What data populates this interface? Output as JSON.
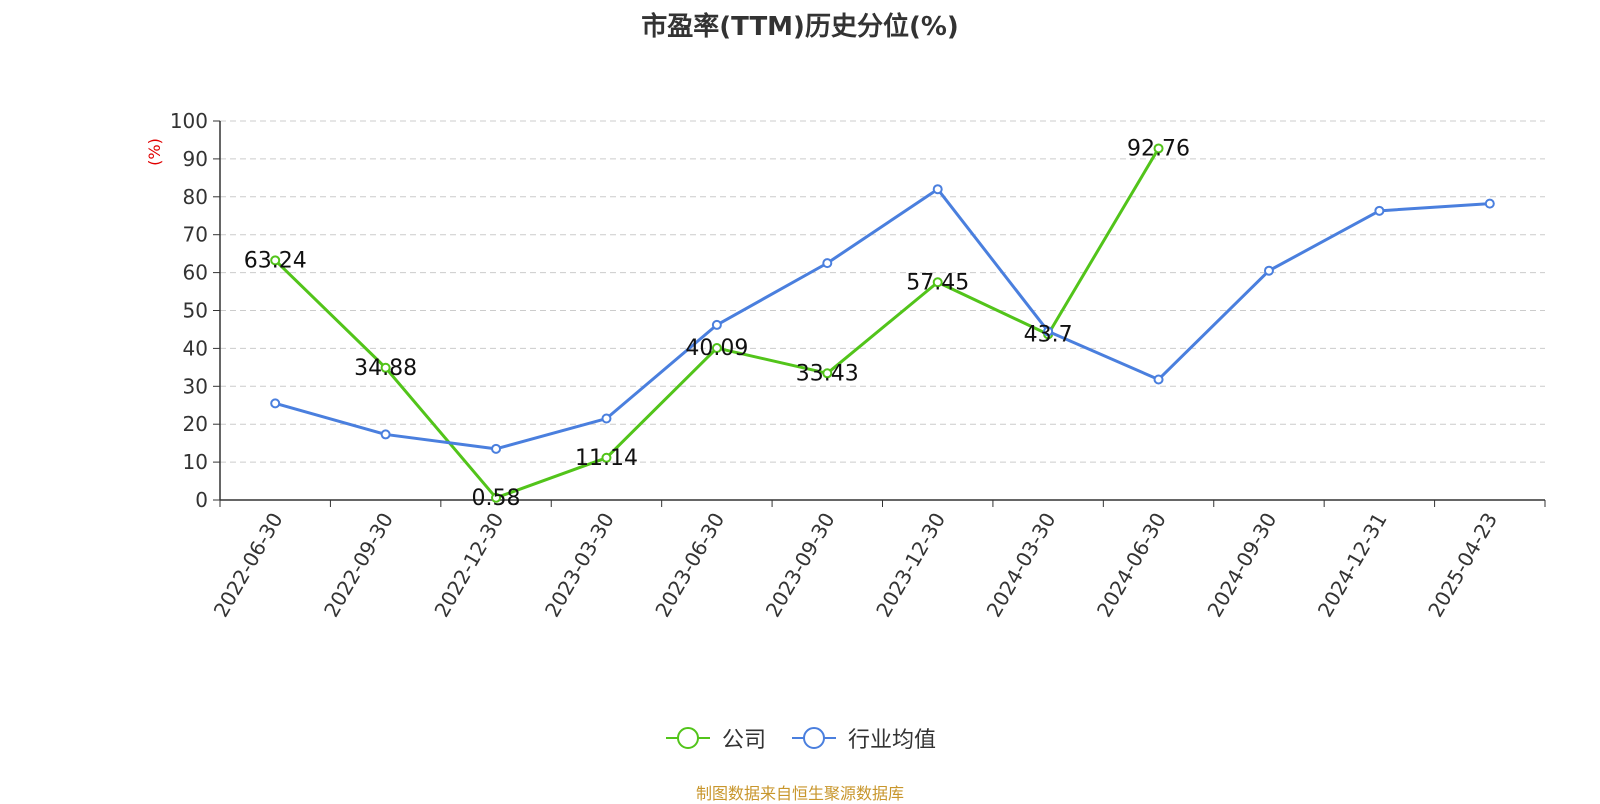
{
  "chart_data": {
    "type": "line",
    "title": "市盈率(TTM)历史分位(%)",
    "ylabel": "(%)",
    "ylim": [
      0,
      100
    ],
    "yticks": [
      0,
      10,
      20,
      30,
      40,
      50,
      60,
      70,
      80,
      90,
      100
    ],
    "grid": true,
    "legend_position": "bottom",
    "categories": [
      "2022-06-30",
      "2022-09-30",
      "2022-12-30",
      "2023-03-30",
      "2023-06-30",
      "2023-09-30",
      "2023-12-30",
      "2024-03-30",
      "2024-06-30",
      "2024-09-30",
      "2024-12-31",
      "2025-04-23"
    ],
    "series": [
      {
        "name": "公司",
        "color": "#52c41a",
        "show_labels": true,
        "values": [
          63.24,
          34.88,
          0.58,
          11.14,
          40.09,
          33.43,
          57.45,
          43.7,
          92.76,
          null,
          null,
          null
        ],
        "labels": [
          "63.24",
          "34.88",
          "0.58",
          "11.14",
          "40.09",
          "33.43",
          "57.45",
          "43.7",
          "92.76",
          null,
          null,
          null
        ]
      },
      {
        "name": "行业均值",
        "color": "#4a7fde",
        "show_labels": false,
        "values": [
          25.5,
          17.3,
          13.5,
          21.5,
          46.2,
          62.5,
          82.0,
          44.5,
          31.8,
          60.5,
          76.3,
          78.2
        ]
      }
    ]
  },
  "legend": {
    "items": [
      "公司",
      "行业均值"
    ]
  },
  "source": "制图数据来自恒生聚源数据库"
}
